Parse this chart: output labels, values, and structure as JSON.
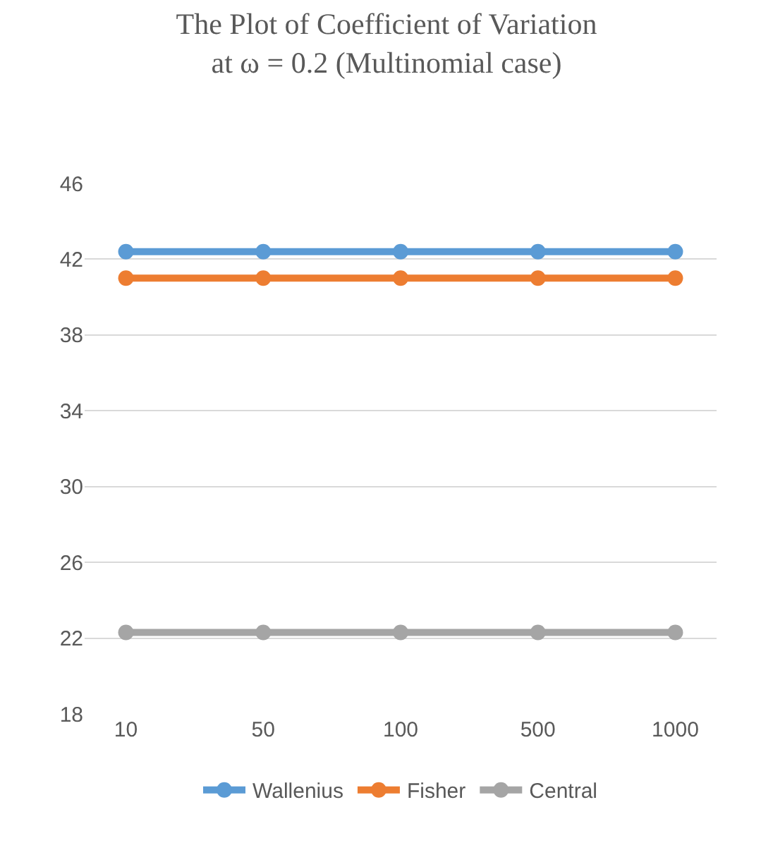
{
  "chart_data": {
    "type": "line",
    "title": "The Plot of Coefficient of Variation\nat ω = 0.2 (Multinomial case)",
    "categories": [
      "10",
      "50",
      "100",
      "500",
      "1000"
    ],
    "series": [
      {
        "name": "Wallenius",
        "color": "#5b9bd5",
        "values": [
          42.4,
          42.4,
          42.4,
          42.4,
          42.4
        ]
      },
      {
        "name": "Fisher",
        "color": "#ed7d31",
        "values": [
          41.0,
          41.0,
          41.0,
          41.0,
          41.0
        ]
      },
      {
        "name": "Central",
        "color": "#a5a5a5",
        "values": [
          22.3,
          22.3,
          22.3,
          22.3,
          22.3
        ]
      }
    ],
    "ylim": [
      18,
      46
    ],
    "yticks": [
      18,
      22,
      26,
      30,
      34,
      38,
      42,
      46
    ],
    "grid": "y",
    "legend": "bottom",
    "marker": "circle",
    "line_style": "solid"
  }
}
